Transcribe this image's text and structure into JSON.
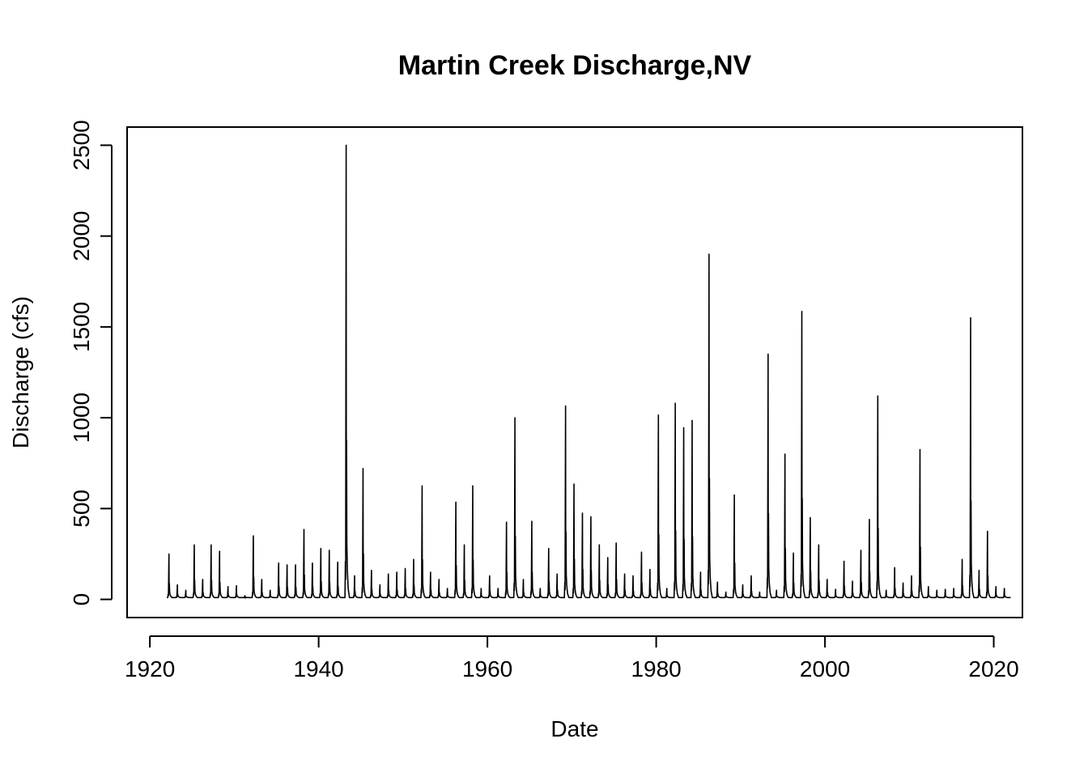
{
  "chart_data": {
    "type": "line",
    "title": "Martin Creek Discharge,NV",
    "xlabel": "Date",
    "ylabel": "Discharge (cfs)",
    "xlim": [
      1917.3,
      2023.4
    ],
    "ylim": [
      -100,
      2600
    ],
    "xticks": [
      1920,
      1940,
      1960,
      1980,
      2000,
      2020
    ],
    "yticks": [
      0,
      500,
      1000,
      1500,
      2000,
      2500
    ],
    "grid": false,
    "legend": "none",
    "line_color": "#000000",
    "base_flow_cfs": 10,
    "x_start": 1922.0,
    "x_end": 2022.0,
    "annual_peaks": {
      "years": [
        1922,
        1923,
        1924,
        1925,
        1926,
        1927,
        1928,
        1929,
        1930,
        1931,
        1932,
        1933,
        1934,
        1935,
        1936,
        1937,
        1938,
        1939,
        1940,
        1941,
        1942,
        1943,
        1944,
        1945,
        1946,
        1947,
        1948,
        1949,
        1950,
        1951,
        1952,
        1953,
        1954,
        1955,
        1956,
        1957,
        1958,
        1959,
        1960,
        1961,
        1962,
        1963,
        1964,
        1965,
        1966,
        1967,
        1968,
        1969,
        1970,
        1971,
        1972,
        1973,
        1974,
        1975,
        1976,
        1977,
        1978,
        1979,
        1980,
        1981,
        1982,
        1983,
        1984,
        1985,
        1986,
        1987,
        1988,
        1989,
        1990,
        1991,
        1992,
        1993,
        1994,
        1995,
        1996,
        1997,
        1998,
        1999,
        2000,
        2001,
        2002,
        2003,
        2004,
        2005,
        2006,
        2007,
        2008,
        2009,
        2010,
        2011,
        2012,
        2013,
        2014,
        2015,
        2016,
        2017,
        2018,
        2019,
        2020,
        2021
      ],
      "peak_cfs": [
        250,
        80,
        50,
        300,
        110,
        300,
        265,
        70,
        75,
        20,
        350,
        110,
        50,
        200,
        190,
        190,
        385,
        200,
        280,
        270,
        205,
        2500,
        130,
        720,
        160,
        80,
        140,
        150,
        170,
        220,
        625,
        150,
        110,
        60,
        535,
        300,
        625,
        60,
        130,
        60,
        425,
        1000,
        110,
        430,
        60,
        280,
        140,
        1065,
        635,
        475,
        455,
        300,
        230,
        310,
        140,
        130,
        260,
        165,
        1015,
        60,
        1080,
        945,
        985,
        150,
        1900,
        95,
        40,
        575,
        80,
        130,
        40,
        1350,
        50,
        800,
        255,
        1585,
        450,
        300,
        110,
        55,
        210,
        100,
        270,
        440,
        1120,
        50,
        175,
        90,
        130,
        825,
        70,
        50,
        55,
        60,
        220,
        1550,
        160,
        375,
        70,
        60
      ]
    }
  }
}
